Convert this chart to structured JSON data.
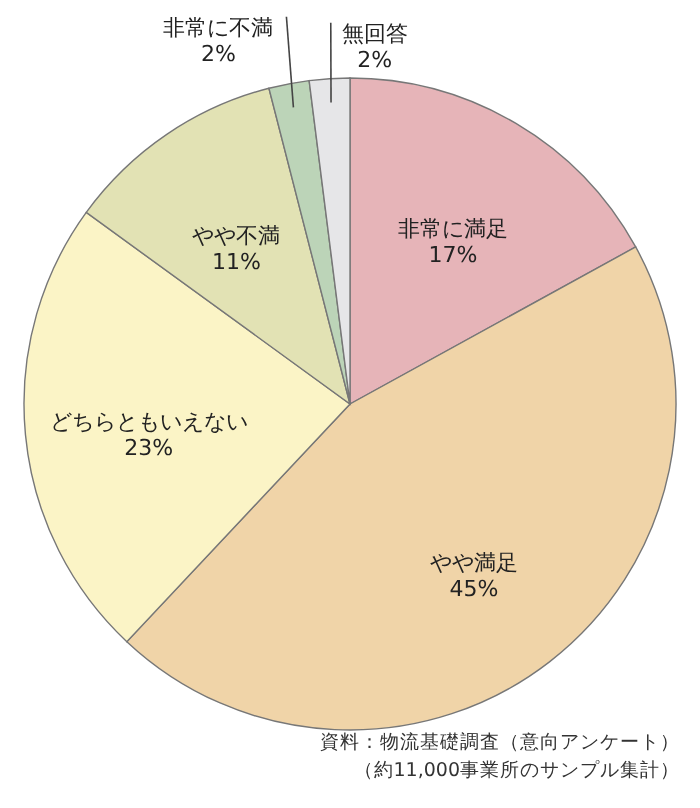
{
  "chart_data": {
    "type": "pie",
    "categories": [
      "非常に満足",
      "やや満足",
      "どちらともいえない",
      "やや不満",
      "非常に不満",
      "無回答"
    ],
    "values": [
      17,
      45,
      23,
      11,
      2,
      2
    ],
    "value_labels": [
      "17%",
      "45%",
      "23%",
      "11%",
      "2%",
      "2%"
    ],
    "colors": [
      "#e6b4b8",
      "#f0d4a8",
      "#fbf4c6",
      "#e2e2b4",
      "#bcd4b8",
      "#e6e6e8"
    ],
    "annotations": [
      "資料：物流基礎調査（意向アンケート）",
      "（約11,000事業所のサンプル集計）"
    ]
  }
}
